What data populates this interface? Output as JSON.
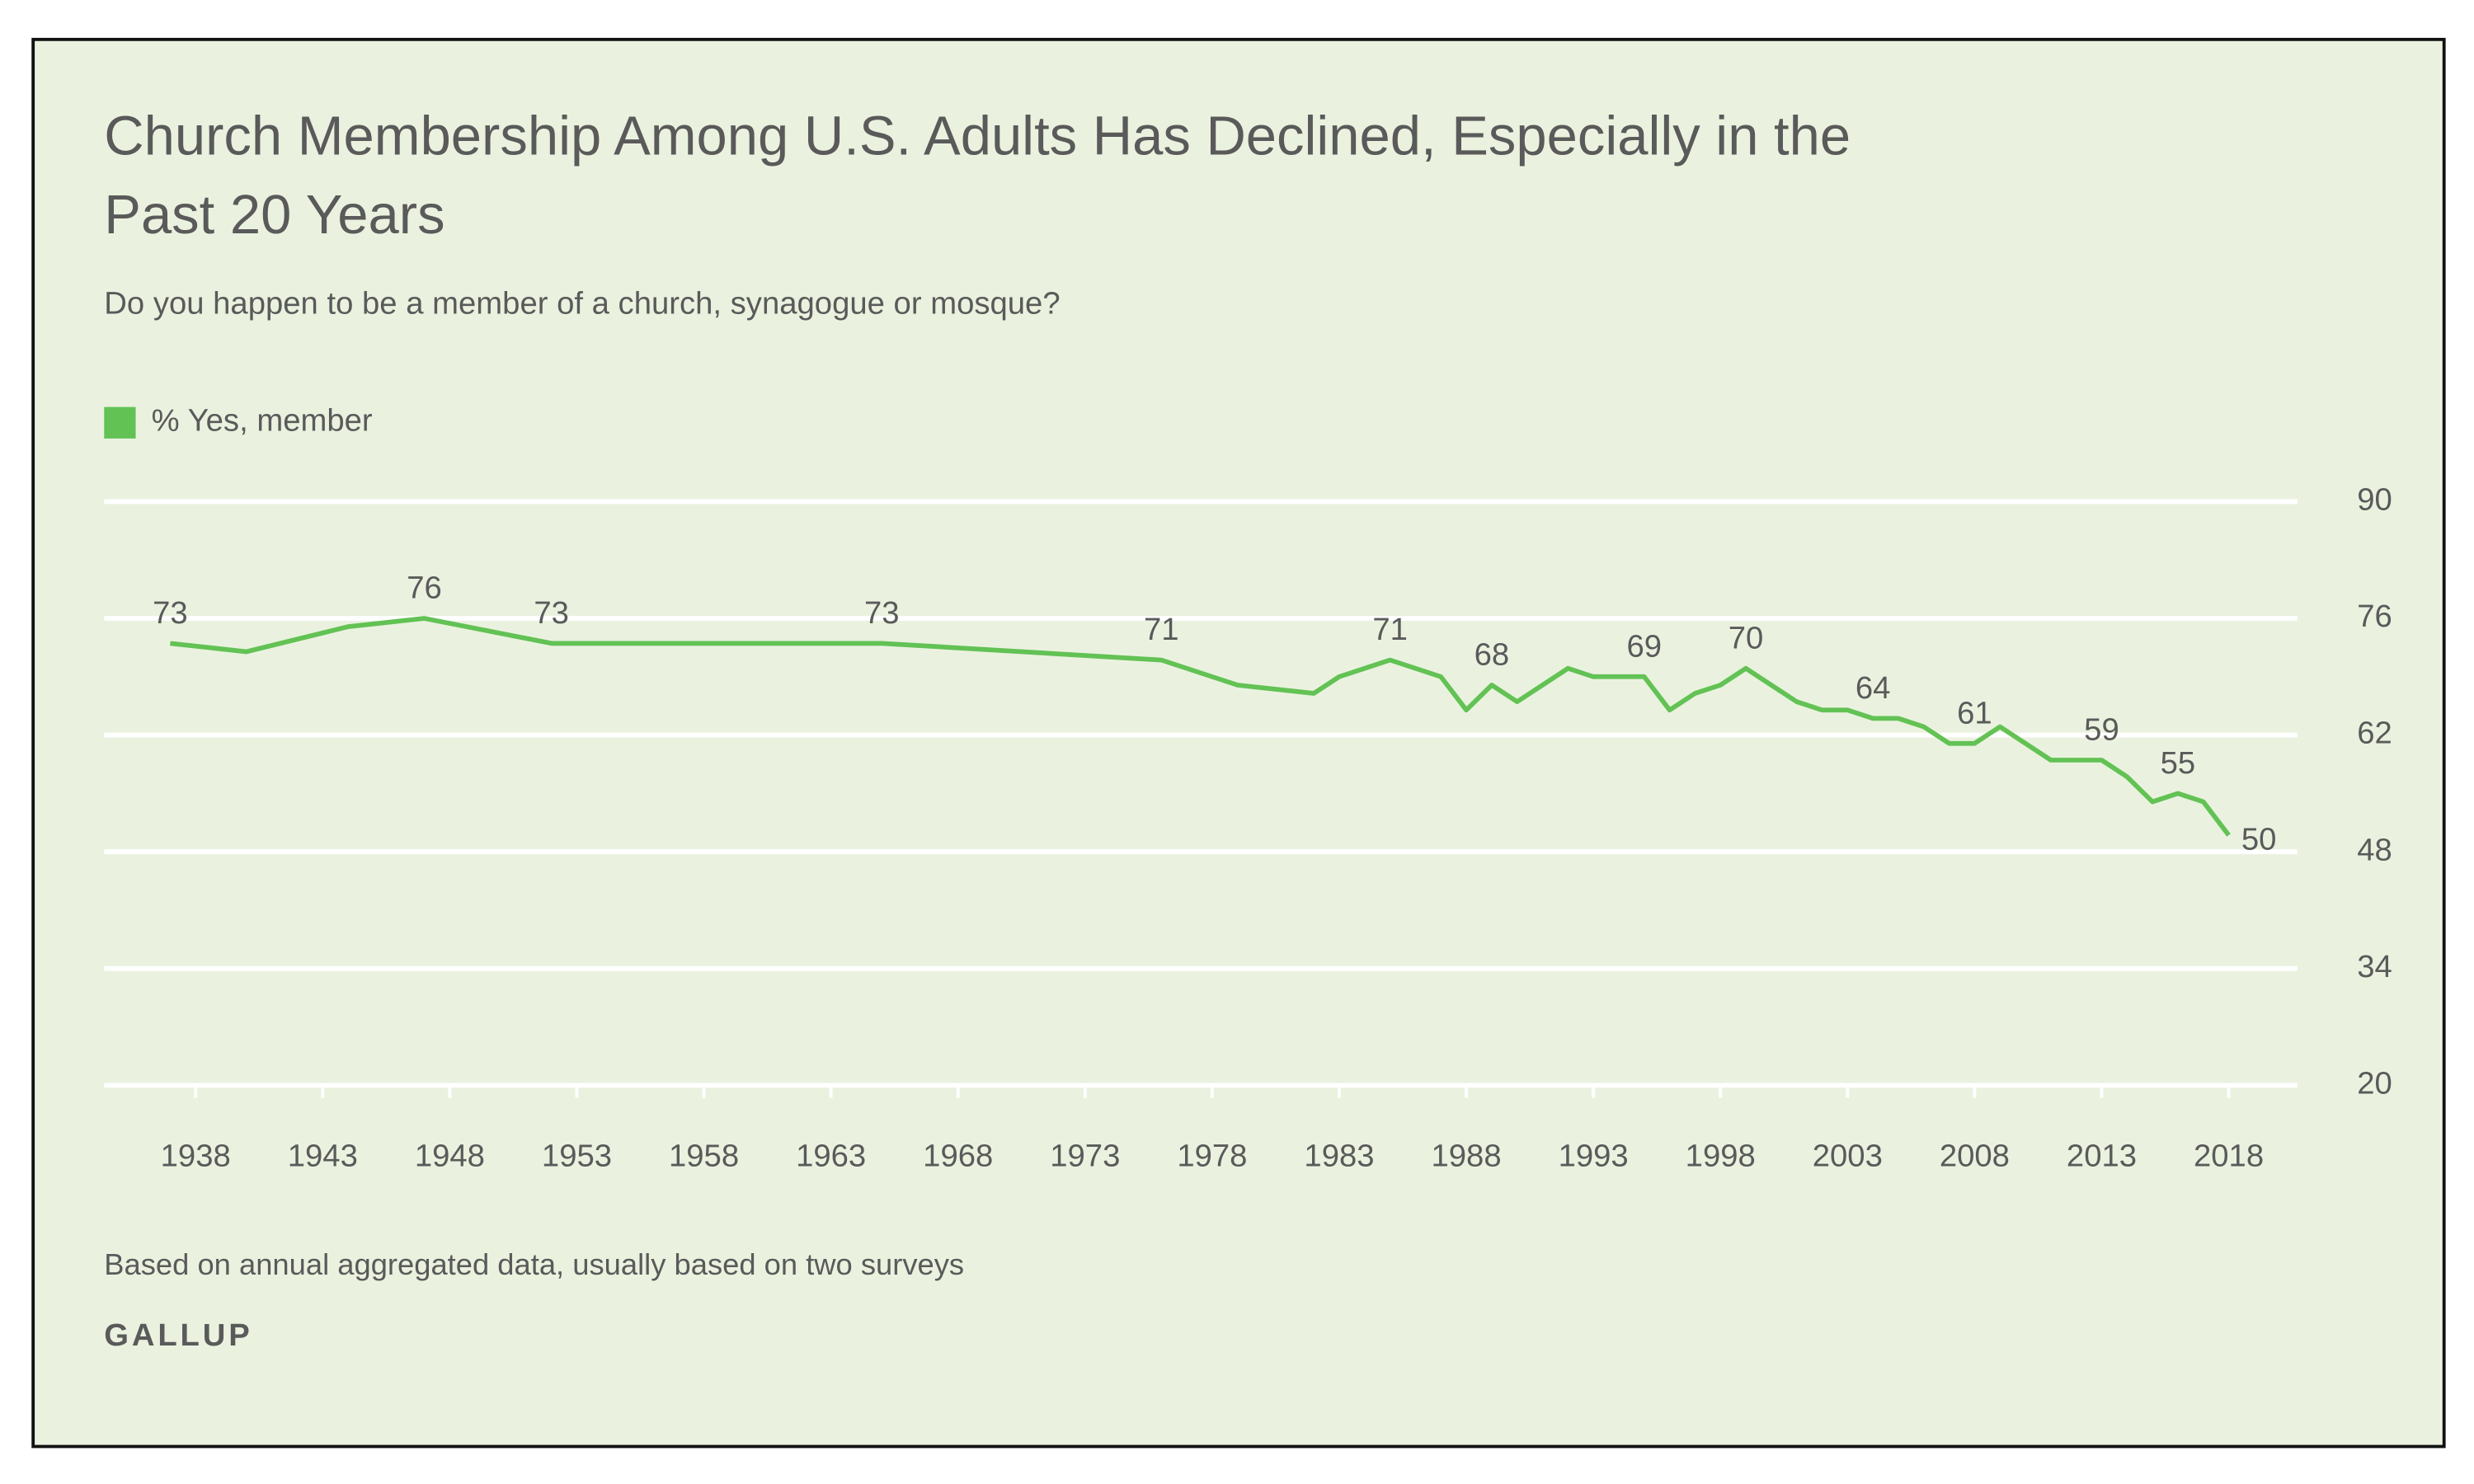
{
  "chart_data": {
    "type": "line",
    "title": "Church Membership Among U.S. Adults Has Declined, Especially in the Past 20 Years",
    "subtitle": "Do you happen to be a member of a church, synagogue or mosque?",
    "note": "Based on annual aggregated data, usually based on two surveys",
    "source": "GALLUP",
    "x": [
      1937,
      1940,
      1944,
      1947,
      1952,
      1965,
      1976,
      1979,
      1982,
      1983,
      1985,
      1987,
      1988,
      1989,
      1990,
      1992,
      1993,
      1995,
      1996,
      1997,
      1998,
      1999,
      2000,
      2001,
      2002,
      2003,
      2004,
      2005,
      2006,
      2007,
      2008,
      2009,
      2010,
      2011,
      2012,
      2013,
      2014,
      2015,
      2016,
      2017,
      2018
    ],
    "series": [
      {
        "name": "% Yes, member",
        "color": "#62c254",
        "values": [
          73,
          72,
          75,
          76,
          73,
          73,
          71,
          68,
          67,
          69,
          71,
          69,
          65,
          68,
          66,
          70,
          69,
          69,
          65,
          67,
          68,
          70,
          68,
          66,
          65,
          65,
          64,
          64,
          63,
          61,
          61,
          63,
          61,
          59,
          59,
          59,
          57,
          54,
          55,
          54,
          50
        ],
        "value_labels": [
          "73",
          null,
          null,
          "76",
          "73",
          "73",
          "71",
          null,
          null,
          null,
          "71",
          null,
          null,
          "68",
          null,
          null,
          null,
          "69",
          null,
          null,
          null,
          "70",
          null,
          null,
          null,
          null,
          "64",
          null,
          null,
          null,
          "61",
          null,
          null,
          null,
          null,
          "59",
          null,
          null,
          "55",
          null,
          "50"
        ]
      }
    ],
    "xlim": [
      1934.4,
      2020.7
    ],
    "xticks": [
      1938,
      1943,
      1948,
      1953,
      1958,
      1963,
      1968,
      1973,
      1978,
      1983,
      1988,
      1993,
      1998,
      2003,
      2008,
      2013,
      2018
    ],
    "ylim": [
      20,
      90
    ],
    "yticks": [
      20,
      34,
      48,
      62,
      76,
      90
    ],
    "grid": true,
    "y_axis_side": "right"
  }
}
